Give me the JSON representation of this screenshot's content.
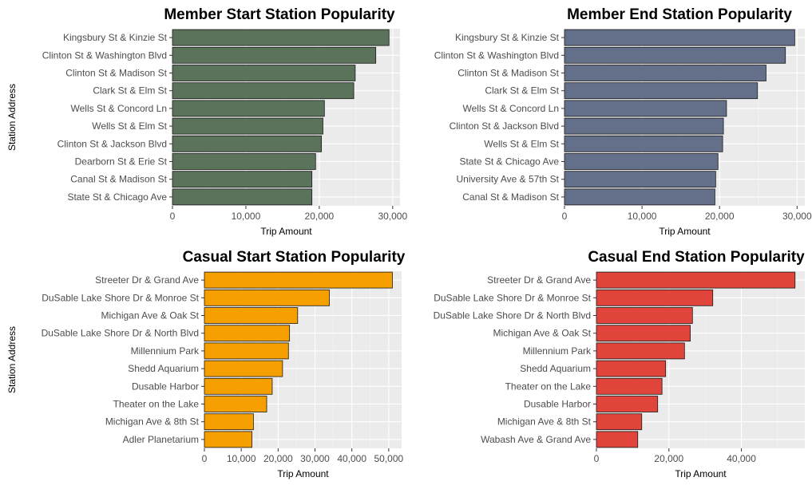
{
  "chart_data": [
    {
      "type": "bar",
      "orientation": "horizontal",
      "title": "Member Start Station Popularity",
      "xlabel": "Trip Amount",
      "ylabel": "Station Address",
      "categories": [
        "Kingsbury St & Kinzie St",
        "Clinton St & Washington Blvd",
        "Clinton St & Madison St",
        "Clark St & Elm St",
        "Wells St & Concord Ln",
        "Wells St & Elm St",
        "Clinton St & Jackson Blvd",
        "Dearborn St & Erie St",
        "Canal St & Madison St",
        "State St & Chicago Ave"
      ],
      "values": [
        29500,
        27700,
        24900,
        24700,
        20700,
        20500,
        20300,
        19500,
        19000,
        19000
      ],
      "xlim": [
        0,
        31000
      ],
      "xticks": [
        0,
        10000,
        20000,
        30000
      ],
      "xtick_labels": [
        "0",
        "10,000",
        "20,000",
        "30,000"
      ],
      "bar_color": "#5a735a",
      "panel_background": "#ebebeb",
      "grid": true
    },
    {
      "type": "bar",
      "orientation": "horizontal",
      "title": "Member End Station Popularity",
      "xlabel": "Trip Amount",
      "ylabel": "",
      "categories": [
        "Kingsbury St & Kinzie St",
        "Clinton St & Washington Blvd",
        "Clinton St & Madison St",
        "Clark St & Elm St",
        "Wells St & Concord Ln",
        "Clinton St & Jackson Blvd",
        "Wells St & Elm St",
        "State St & Chicago Ave",
        "University Ave & 57th St",
        "Canal St & Madison St"
      ],
      "values": [
        29700,
        28500,
        26000,
        24900,
        20900,
        20500,
        20400,
        19800,
        19500,
        19400
      ],
      "xlim": [
        0,
        31000
      ],
      "xticks": [
        0,
        10000,
        20000,
        30000
      ],
      "xtick_labels": [
        "0",
        "10,000",
        "20,000",
        "30,000"
      ],
      "bar_color": "#64708a",
      "panel_background": "#ebebeb",
      "grid": true
    },
    {
      "type": "bar",
      "orientation": "horizontal",
      "title": "Casual Start Station Popularity",
      "xlabel": "Trip Amount",
      "ylabel": "Station Address",
      "categories": [
        "Streeter Dr & Grand Ave",
        "DuSable Lake Shore Dr & Monroe St",
        "Michigan Ave & Oak St",
        "DuSable Lake Shore Dr & North Blvd",
        "Millennium Park",
        "Shedd Aquarium",
        "Dusable Harbor",
        "Theater on the Lake",
        "Michigan Ave & 8th St",
        "Adler Planetarium"
      ],
      "values": [
        51000,
        33900,
        25300,
        23100,
        22800,
        21200,
        18400,
        16900,
        13300,
        12900
      ],
      "xlim": [
        0,
        53500
      ],
      "xticks": [
        0,
        10000,
        20000,
        30000,
        40000,
        50000
      ],
      "xtick_labels": [
        "0",
        "10,000",
        "20,000",
        "30,000",
        "40,000",
        "50,000"
      ],
      "bar_color": "#f5a000",
      "panel_background": "#ebebeb",
      "grid": true
    },
    {
      "type": "bar",
      "orientation": "horizontal",
      "title": "Casual End Station Popularity",
      "xlabel": "Trip Amount",
      "ylabel": "",
      "categories": [
        "Streeter Dr & Grand Ave",
        "DuSable Lake Shore Dr & Monroe St",
        "DuSable Lake Shore Dr & North Blvd",
        "Michigan Ave & Oak St",
        "Millennium Park",
        "Shedd Aquarium",
        "Theater on the Lake",
        "Dusable Harbor",
        "Michigan Ave & 8th St",
        "Wabash Ave & Grand Ave"
      ],
      "values": [
        54800,
        32100,
        26500,
        25900,
        24300,
        19100,
        18100,
        16900,
        12500,
        11400
      ],
      "xlim": [
        0,
        57500
      ],
      "xticks": [
        0,
        20000,
        40000
      ],
      "xtick_labels": [
        "0",
        "20,000",
        "40,000"
      ],
      "bar_color": "#e0443a",
      "panel_background": "#ebebeb",
      "grid": true
    }
  ]
}
